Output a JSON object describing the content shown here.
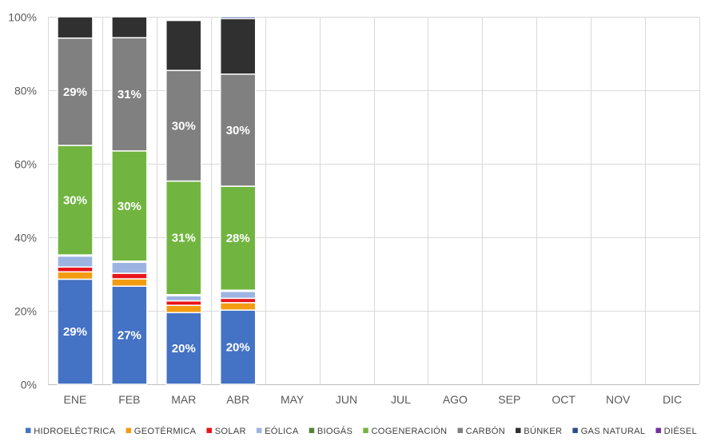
{
  "chart_data": {
    "type": "bar",
    "stacked": true,
    "categories": [
      "ENE",
      "FEB",
      "MAR",
      "ABR",
      "MAY",
      "JUN",
      "JUL",
      "AGO",
      "SEP",
      "OCT",
      "NOV",
      "DIC"
    ],
    "ylim": [
      0,
      100
    ],
    "yticks": [
      "0%",
      "20%",
      "40%",
      "60%",
      "80%",
      "100%"
    ],
    "grid": true,
    "legend_position": "bottom",
    "series": [
      {
        "name": "HIDROELÉCTRICA",
        "color": "#4472C4",
        "values": [
          28.6,
          26.7,
          19.5,
          20.2,
          null,
          null,
          null,
          null,
          null,
          null,
          null,
          null
        ],
        "labels": [
          "29%",
          "27%",
          "20%",
          "20%"
        ]
      },
      {
        "name": "GEOTÉRMICA",
        "color": "#F39C12",
        "values": [
          2.0,
          2.0,
          2.0,
          2.0,
          null,
          null,
          null,
          null,
          null,
          null,
          null,
          null
        ]
      },
      {
        "name": "SOLAR",
        "color": "#E8151B",
        "values": [
          1.3,
          1.5,
          1.2,
          1.2,
          null,
          null,
          null,
          null,
          null,
          null,
          null,
          null
        ]
      },
      {
        "name": "EÓLICA",
        "color": "#9DB4E2",
        "values": [
          3.0,
          3.0,
          1.4,
          1.9,
          null,
          null,
          null,
          null,
          null,
          null,
          null,
          null
        ]
      },
      {
        "name": "BIOGÁS",
        "color": "#548235",
        "values": [
          0.3,
          0.3,
          0.3,
          0.3,
          null,
          null,
          null,
          null,
          null,
          null,
          null,
          null
        ]
      },
      {
        "name": "COGENERACIÓN",
        "color": "#71B540",
        "values": [
          29.8,
          30.0,
          30.9,
          28.3,
          null,
          null,
          null,
          null,
          null,
          null,
          null,
          null
        ],
        "labels": [
          "30%",
          "30%",
          "31%",
          "28%"
        ]
      },
      {
        "name": "CARBÓN",
        "color": "#808080",
        "values": [
          29.2,
          30.8,
          30.1,
          30.5,
          null,
          null,
          null,
          null,
          null,
          null,
          null,
          null
        ],
        "labels": [
          "29%",
          "31%",
          "30%",
          "30%"
        ]
      },
      {
        "name": "BÚNKER",
        "color": "#303030",
        "values": [
          5.8,
          5.7,
          13.6,
          15.1,
          null,
          null,
          null,
          null,
          null,
          null,
          null,
          null
        ]
      },
      {
        "name": "GAS NATURAL",
        "color": "#2E4D88",
        "values": [
          0,
          0,
          0,
          0.5,
          null,
          null,
          null,
          null,
          null,
          null,
          null,
          null
        ]
      },
      {
        "name": "DIÉSEL",
        "color": "#7030A0",
        "values": [
          0,
          0,
          0,
          0,
          null,
          null,
          null,
          null,
          null,
          null,
          null,
          null
        ]
      }
    ]
  }
}
